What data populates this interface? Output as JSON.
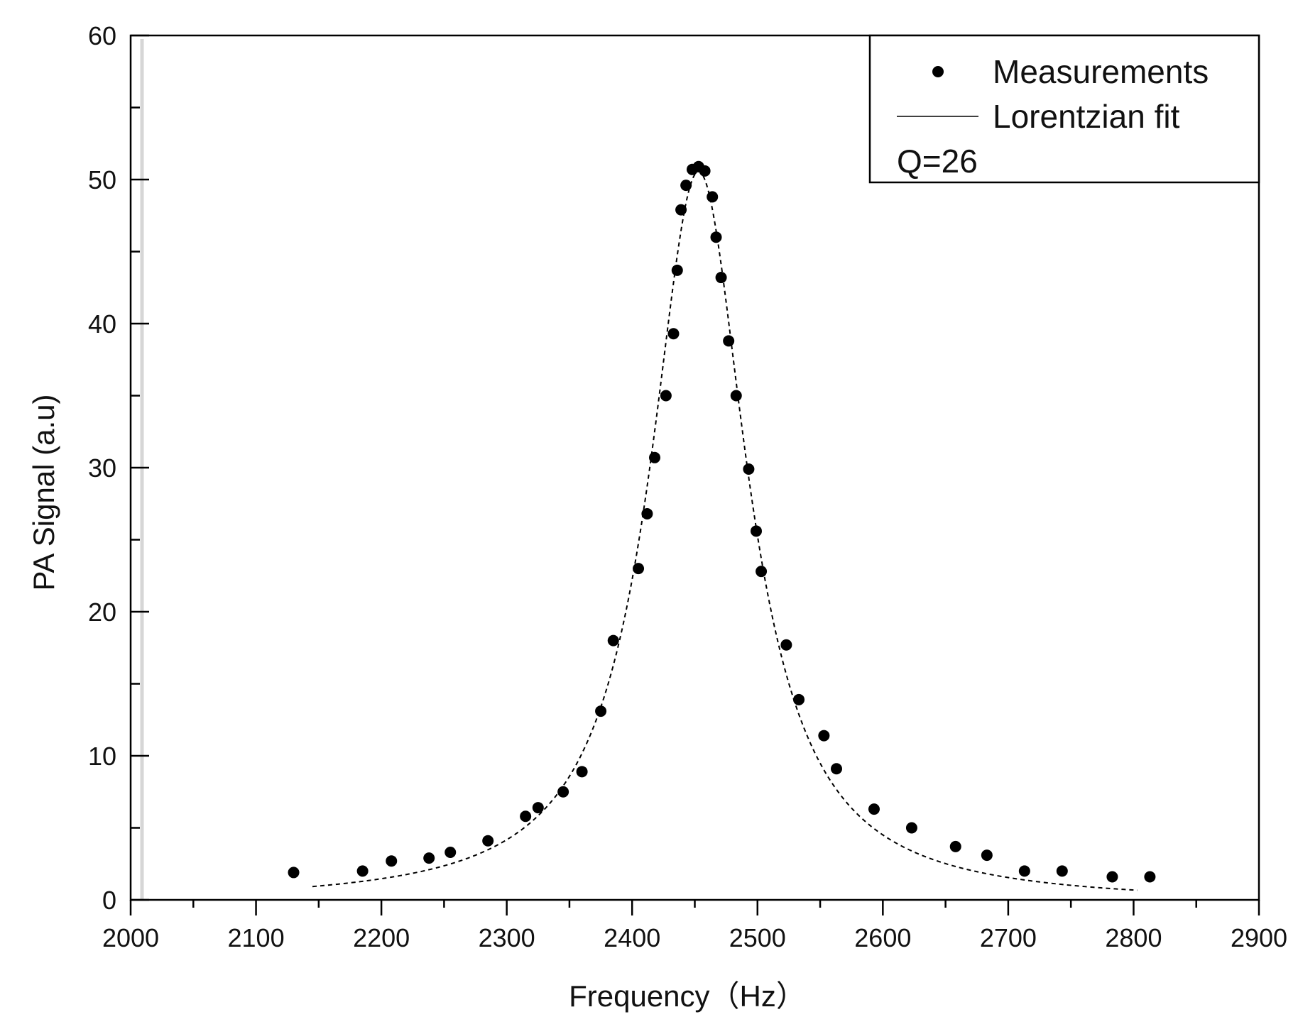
{
  "chart_data": {
    "type": "scatter",
    "xlabel": "Frequency（Hz）",
    "ylabel": "PA Signal (a.u)",
    "xlim": [
      2000,
      2900
    ],
    "ylim": [
      0,
      60
    ],
    "x_ticks": [
      "2000",
      "2100",
      "2200",
      "2300",
      "2400",
      "2500",
      "2600",
      "2700",
      "2800",
      "2900"
    ],
    "y_ticks": [
      "0",
      "10",
      "20",
      "30",
      "40",
      "50",
      "60"
    ],
    "grid": false,
    "legend": {
      "position": "top-right",
      "entries": [
        "Measurements",
        "Lorentzian fit"
      ],
      "annotation": "Q=26"
    },
    "series": [
      {
        "name": "Measurements",
        "style": "points",
        "color": "#000000",
        "points": [
          [
            2130,
            1.9
          ],
          [
            2185,
            2.0
          ],
          [
            2208,
            2.7
          ],
          [
            2238,
            2.9
          ],
          [
            2255,
            3.3
          ],
          [
            2285,
            4.1
          ],
          [
            2315,
            5.8
          ],
          [
            2325,
            6.4
          ],
          [
            2345,
            7.5
          ],
          [
            2360,
            8.9
          ],
          [
            2375,
            13.1
          ],
          [
            2385,
            18.0
          ],
          [
            2405,
            23.0
          ],
          [
            2412,
            26.8
          ],
          [
            2418,
            30.7
          ],
          [
            2427,
            35.0
          ],
          [
            2433,
            39.3
          ],
          [
            2436,
            43.7
          ],
          [
            2439,
            47.9
          ],
          [
            2443,
            49.6
          ],
          [
            2448,
            50.7
          ],
          [
            2453,
            50.9
          ],
          [
            2458,
            50.6
          ],
          [
            2464,
            48.8
          ],
          [
            2467,
            46.0
          ],
          [
            2471,
            43.2
          ],
          [
            2477,
            38.8
          ],
          [
            2483,
            35.0
          ],
          [
            2493,
            29.9
          ],
          [
            2499,
            25.6
          ],
          [
            2503,
            22.8
          ],
          [
            2523,
            17.7
          ],
          [
            2533,
            13.9
          ],
          [
            2553,
            11.4
          ],
          [
            2563,
            9.1
          ],
          [
            2593,
            6.3
          ],
          [
            2623,
            5.0
          ],
          [
            2658,
            3.7
          ],
          [
            2683,
            3.1
          ],
          [
            2713,
            2.0
          ],
          [
            2743,
            2.0
          ],
          [
            2783,
            1.6
          ],
          [
            2813,
            1.6
          ]
        ]
      },
      {
        "name": "Lorentzian fit",
        "style": "dashed-line",
        "color": "#000000",
        "x0": 2453,
        "gamma": 47.2,
        "amplitude": 50.8,
        "baseline": -0.24,
        "x_range": [
          2145,
          2803
        ]
      }
    ]
  }
}
